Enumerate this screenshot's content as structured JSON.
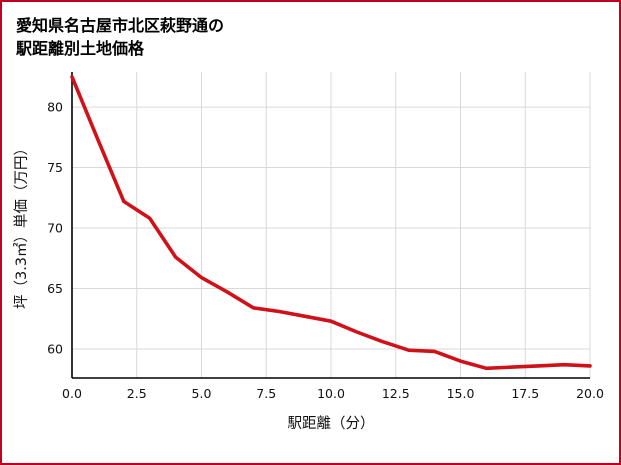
{
  "title": {
    "line1": "愛知県名古屋市北区萩野通の",
    "line2": "駅距離別土地価格"
  },
  "chart_data": {
    "type": "line",
    "title": "愛知県名古屋市北区萩野通の駅距離別土地価格",
    "xlabel": "駅距離（分）",
    "ylabel": "坪（3.3㎡）単価（万円）",
    "x": [
      0,
      1,
      2,
      3,
      4,
      5,
      6,
      7,
      8,
      9,
      10,
      11,
      12,
      13,
      14,
      15,
      16,
      17,
      18,
      19,
      20
    ],
    "y": [
      82.5,
      77.3,
      72.2,
      70.8,
      67.6,
      65.9,
      64.7,
      63.4,
      63.1,
      62.7,
      62.3,
      61.4,
      60.6,
      59.9,
      59.8,
      59.0,
      58.4,
      58.5,
      58.6,
      58.7,
      58.6
    ],
    "xlim": [
      0,
      20
    ],
    "ylim": [
      57.6,
      82.9
    ],
    "x_ticks": [
      0,
      2.5,
      5,
      7.5,
      10,
      12.5,
      15,
      17.5,
      20
    ],
    "x_tick_labels": [
      "0.0",
      "2.5",
      "5.0",
      "7.5",
      "10.0",
      "12.5",
      "15.0",
      "17.5",
      "20.0"
    ],
    "y_ticks": [
      60,
      65,
      70,
      75,
      80
    ],
    "y_tick_labels": [
      "60",
      "65",
      "70",
      "75",
      "80"
    ],
    "grid": true,
    "legend": false,
    "colors": {
      "line": "#d01119",
      "grid": "#d9d9d9",
      "axis": "#000000",
      "text": "#111111",
      "border": "#c00020",
      "background": "#ffffff"
    }
  }
}
